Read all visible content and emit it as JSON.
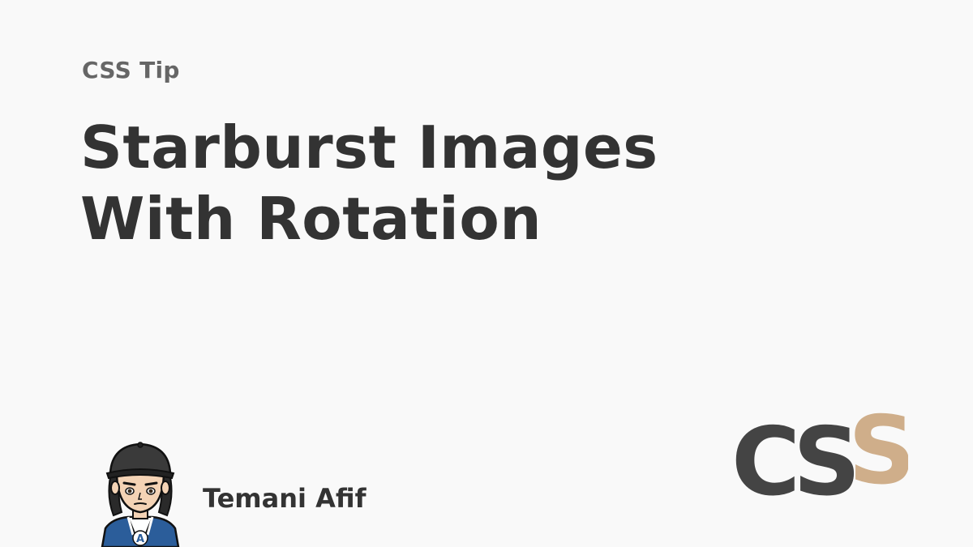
{
  "header": {
    "kicker": "CSS Tip",
    "title_line_1": "Starburst Images",
    "title_line_2": "With Rotation"
  },
  "author": {
    "name": "Temani Afif",
    "avatar_icon": "cartoon-avatar-with-cap",
    "badge_letter": "A"
  },
  "logo": {
    "icon": "css-logo",
    "letters": [
      "C",
      "S",
      "S"
    ],
    "colors": {
      "primary": "#444444",
      "accent": "#c8a277"
    }
  },
  "colors": {
    "background": "#f9f9f9",
    "text": "#333333",
    "kicker": "#666666"
  }
}
